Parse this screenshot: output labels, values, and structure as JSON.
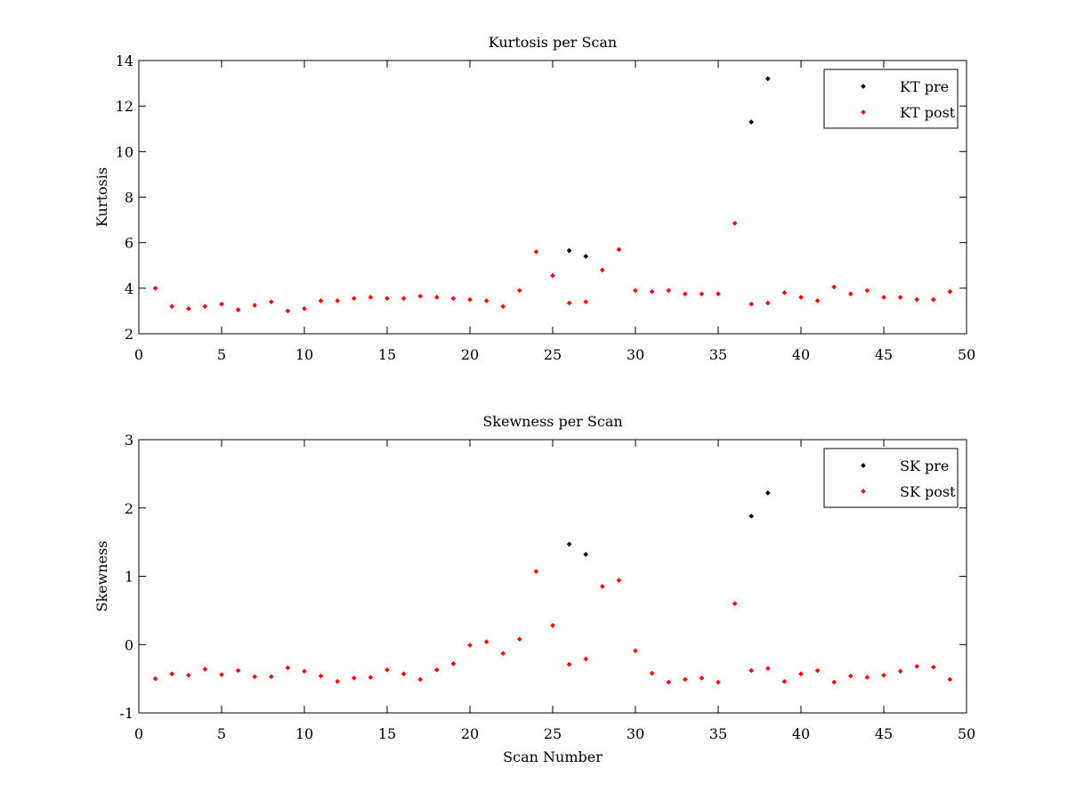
{
  "chart_data": [
    {
      "type": "scatter",
      "title": "Kurtosis per Scan",
      "xlabel": "",
      "ylabel": "Kurtosis",
      "xlim": [
        0,
        50
      ],
      "ylim": [
        2,
        14
      ],
      "xticks": [
        0,
        5,
        10,
        15,
        20,
        25,
        30,
        35,
        40,
        45,
        50
      ],
      "yticks": [
        2,
        4,
        6,
        8,
        10,
        12,
        14
      ],
      "grid": false,
      "legend_position": "top-right",
      "series": [
        {
          "name": "KT pre",
          "color": "#000000",
          "x": [
            26,
            27,
            37,
            38
          ],
          "y": [
            5.65,
            5.4,
            11.3,
            13.2
          ]
        },
        {
          "name": "KT post",
          "color": "#ff0000",
          "x": [
            1,
            2,
            3,
            4,
            5,
            6,
            7,
            8,
            9,
            10,
            11,
            12,
            13,
            14,
            15,
            16,
            17,
            18,
            19,
            20,
            21,
            22,
            23,
            24,
            25,
            26,
            27,
            28,
            29,
            30,
            31,
            32,
            33,
            34,
            35,
            36,
            37,
            38,
            39,
            40,
            41,
            42,
            43,
            44,
            45,
            46,
            47,
            48,
            49
          ],
          "y": [
            4.0,
            3.2,
            3.1,
            3.2,
            3.3,
            3.05,
            3.25,
            3.4,
            3.0,
            3.1,
            3.45,
            3.45,
            3.55,
            3.6,
            3.55,
            3.55,
            3.65,
            3.6,
            3.55,
            3.5,
            3.45,
            3.2,
            3.9,
            5.6,
            4.55,
            3.35,
            3.4,
            4.8,
            5.7,
            3.9,
            3.85,
            3.9,
            3.75,
            3.75,
            3.75,
            6.85,
            3.3,
            3.35,
            3.8,
            3.6,
            3.45,
            4.05,
            3.75,
            3.9,
            3.6,
            3.6,
            3.5,
            3.5,
            3.85
          ]
        }
      ]
    },
    {
      "type": "scatter",
      "title": "Skewness per Scan",
      "xlabel": "Scan Number",
      "ylabel": "Skewness",
      "xlim": [
        0,
        50
      ],
      "ylim": [
        -1,
        3
      ],
      "xticks": [
        0,
        5,
        10,
        15,
        20,
        25,
        30,
        35,
        40,
        45,
        50
      ],
      "yticks": [
        -1,
        0,
        1,
        2,
        3
      ],
      "grid": false,
      "legend_position": "top-right",
      "series": [
        {
          "name": "SK pre",
          "color": "#000000",
          "x": [
            26,
            27,
            37,
            38
          ],
          "y": [
            1.47,
            1.32,
            1.88,
            2.22
          ]
        },
        {
          "name": "SK post",
          "color": "#ff0000",
          "x": [
            1,
            2,
            3,
            4,
            5,
            6,
            7,
            8,
            9,
            10,
            11,
            12,
            13,
            14,
            15,
            16,
            17,
            18,
            19,
            20,
            21,
            22,
            23,
            24,
            25,
            26,
            27,
            28,
            29,
            30,
            31,
            32,
            33,
            34,
            35,
            36,
            37,
            38,
            39,
            40,
            41,
            42,
            43,
            44,
            45,
            46,
            47,
            48,
            49
          ],
          "y": [
            -0.5,
            -0.43,
            -0.45,
            -0.36,
            -0.44,
            -0.38,
            -0.47,
            -0.47,
            -0.34,
            -0.39,
            -0.46,
            -0.54,
            -0.49,
            -0.48,
            -0.37,
            -0.43,
            -0.51,
            -0.37,
            -0.28,
            -0.01,
            0.04,
            -0.13,
            0.08,
            1.07,
            0.28,
            -0.29,
            -0.21,
            0.85,
            0.94,
            -0.09,
            -0.42,
            -0.55,
            -0.51,
            -0.49,
            -0.55,
            0.6,
            -0.38,
            -0.35,
            -0.54,
            -0.43,
            -0.38,
            -0.55,
            -0.46,
            -0.48,
            -0.45,
            -0.39,
            -0.32,
            -0.33,
            -0.51
          ]
        }
      ]
    }
  ]
}
